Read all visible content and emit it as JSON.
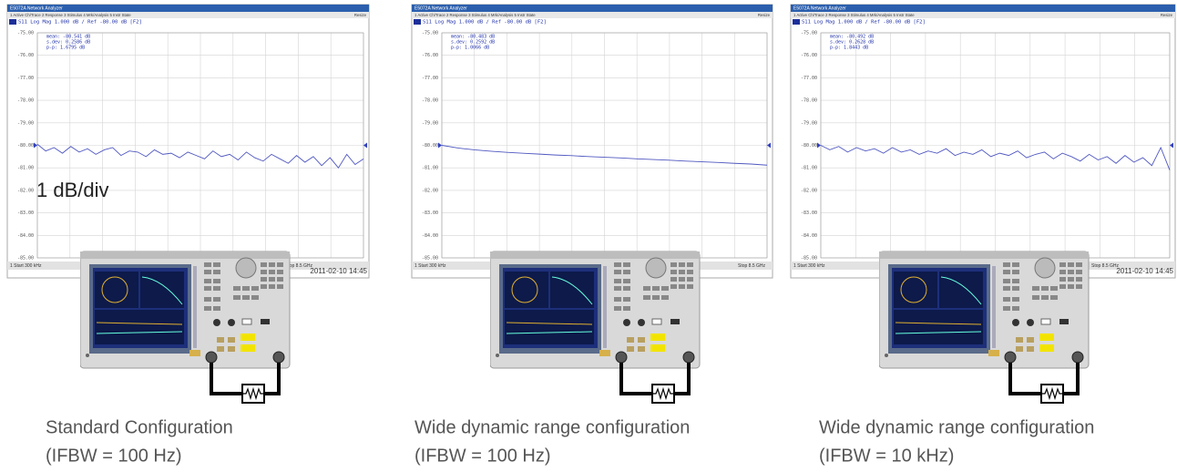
{
  "screen_scale": {
    "ylim": [
      -85,
      -75
    ],
    "yticks": [
      {
        "value": -75,
        "label": "-75.00"
      },
      {
        "value": -76,
        "label": "-76.00"
      },
      {
        "value": -77,
        "label": "-77.00"
      },
      {
        "value": -78,
        "label": "-78.00"
      },
      {
        "value": -79,
        "label": "-79.00"
      },
      {
        "value": -80,
        "label": "-80.00"
      },
      {
        "value": -81,
        "label": "-81.00"
      },
      {
        "value": -82,
        "label": "-82.00"
      },
      {
        "value": -83,
        "label": "-83.00"
      },
      {
        "value": -84,
        "label": "-84.00"
      },
      {
        "value": -85,
        "label": "-85.00"
      }
    ]
  },
  "panels": [
    {
      "screen": {
        "title": "E5072A Network Analyzer",
        "menu": "1 Active Ch/Trace  2 Response  3 Stimulus  4 Mrk/Analysis  5 Instr State",
        "resize": "Resize",
        "trace_label": "S11 Log Mag 1.000 dB / Ref -80.00 dB [F2]",
        "stats": [
          "mean: -80.541 dB",
          "s.dev: 0.2586 dB",
          "p-p: 1.6795 dB"
        ],
        "trace": [
          -79.95,
          -80.25,
          -80.1,
          -80.35,
          -80.05,
          -80.3,
          -80.15,
          -80.4,
          -80.2,
          -80.1,
          -80.45,
          -80.25,
          -80.3,
          -80.5,
          -80.2,
          -80.4,
          -80.35,
          -80.55,
          -80.3,
          -80.45,
          -80.6,
          -80.25,
          -80.5,
          -80.4,
          -80.65,
          -80.3,
          -80.55,
          -80.7,
          -80.4,
          -80.6,
          -80.8,
          -80.45,
          -80.75,
          -80.5,
          -80.9,
          -80.55,
          -81.0,
          -80.4,
          -80.85,
          -80.6
        ],
        "start": "1 Start 300 kHz",
        "stop": "Stop 8.5 GHz",
        "datetime": "2011-02-10 14:45"
      },
      "annotation": "1 dB/div",
      "caption": [
        "Standard Configuration",
        "(IFBW = 100 Hz)"
      ]
    },
    {
      "screen": {
        "title": "E5072A Network Analyzer",
        "menu": "1 Active Ch/Trace  2 Response  3 Stimulus  4 Mrk/Analysis  5 Instr State",
        "resize": "Resize",
        "trace_label": "S11 Log Mag 1.000 dB / Ref -80.00 dB [F2]",
        "stats": [
          "mean: -80.483 dB",
          "s.dev: 0.2592 dB",
          "p-p: 1.0066 dB"
        ],
        "trace": [
          -80.0,
          -80.12,
          -80.2,
          -80.26,
          -80.31,
          -80.35,
          -80.39,
          -80.43,
          -80.46,
          -80.5,
          -80.53,
          -80.56,
          -80.6,
          -80.63,
          -80.66,
          -80.7,
          -80.73,
          -80.76,
          -80.8,
          -80.83,
          -80.88
        ],
        "start": "1 Start 300 kHz",
        "stop": "Stop 8.5 GHz"
      },
      "caption": [
        "Wide dynamic range configuration",
        "(IFBW = 100 Hz)"
      ]
    },
    {
      "screen": {
        "title": "E5072A Network Analyzer",
        "menu": "1 Active Ch/Trace  2 Response  3 Stimulus  4 Mrk/Analysis  5 Instr State",
        "resize": "Resize",
        "trace_label": "S11 Log Mag 1.000 dB / Ref -80.00 dB [F2]",
        "stats": [
          "mean: -80.492 dB",
          "s.dev: 0.2628 dB",
          "p-p: 1.8443 dB"
        ],
        "trace": [
          -80.0,
          -80.2,
          -80.05,
          -80.3,
          -80.1,
          -80.25,
          -80.15,
          -80.35,
          -80.1,
          -80.3,
          -80.2,
          -80.4,
          -80.25,
          -80.35,
          -80.15,
          -80.45,
          -80.3,
          -80.4,
          -80.2,
          -80.5,
          -80.35,
          -80.45,
          -80.25,
          -80.55,
          -80.4,
          -80.3,
          -80.6,
          -80.35,
          -80.5,
          -80.7,
          -80.4,
          -80.65,
          -80.5,
          -80.8,
          -80.45,
          -80.75,
          -80.55,
          -80.9,
          -80.1,
          -81.1
        ],
        "start": "1 Start 300 kHz",
        "stop": "Stop 8.5 GHz",
        "datetime": "2011-02-10 14:45"
      },
      "caption": [
        "Wide dynamic range configuration",
        "(IFBW = 10 kHz)"
      ]
    }
  ]
}
